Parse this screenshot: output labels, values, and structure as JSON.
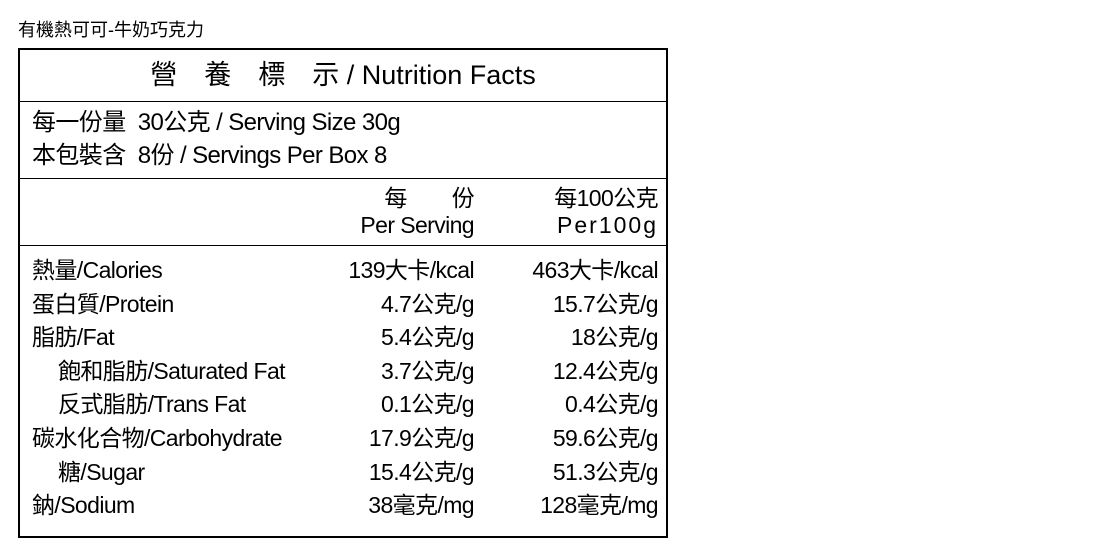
{
  "product_name": "有機熱可可-牛奶巧克力",
  "label": {
    "title": "營　養　標　示 / Nutrition Facts",
    "serving": [
      "每一份量  30公克 / Serving Size 30g",
      "本包裝含  8份 / Servings Per Box 8"
    ],
    "columns": [
      [
        "每　　份",
        "Per Serving"
      ],
      [
        "每100公克",
        "Per100g"
      ]
    ],
    "rows": [
      [
        "熱量/Calories",
        "139大卡/kcal",
        "463大卡/kcal"
      ],
      [
        "蛋白質/Protein",
        "4.7公克/g",
        "15.7公克/g"
      ],
      [
        "脂肪/Fat",
        "5.4公克/g",
        "18公克/g"
      ],
      [
        "飽和脂肪/Saturated Fat",
        "3.7公克/g",
        "12.4公克/g"
      ],
      [
        "反式脂肪/Trans Fat",
        "0.1公克/g",
        "0.4公克/g"
      ],
      [
        "碳水化合物/Carbohydrate",
        "17.9公克/g",
        "59.6公克/g"
      ],
      [
        "糖/Sugar",
        "15.4公克/g",
        "51.3公克/g"
      ],
      [
        "鈉/Sodium",
        "38毫克/mg",
        "128毫克/mg"
      ]
    ]
  }
}
